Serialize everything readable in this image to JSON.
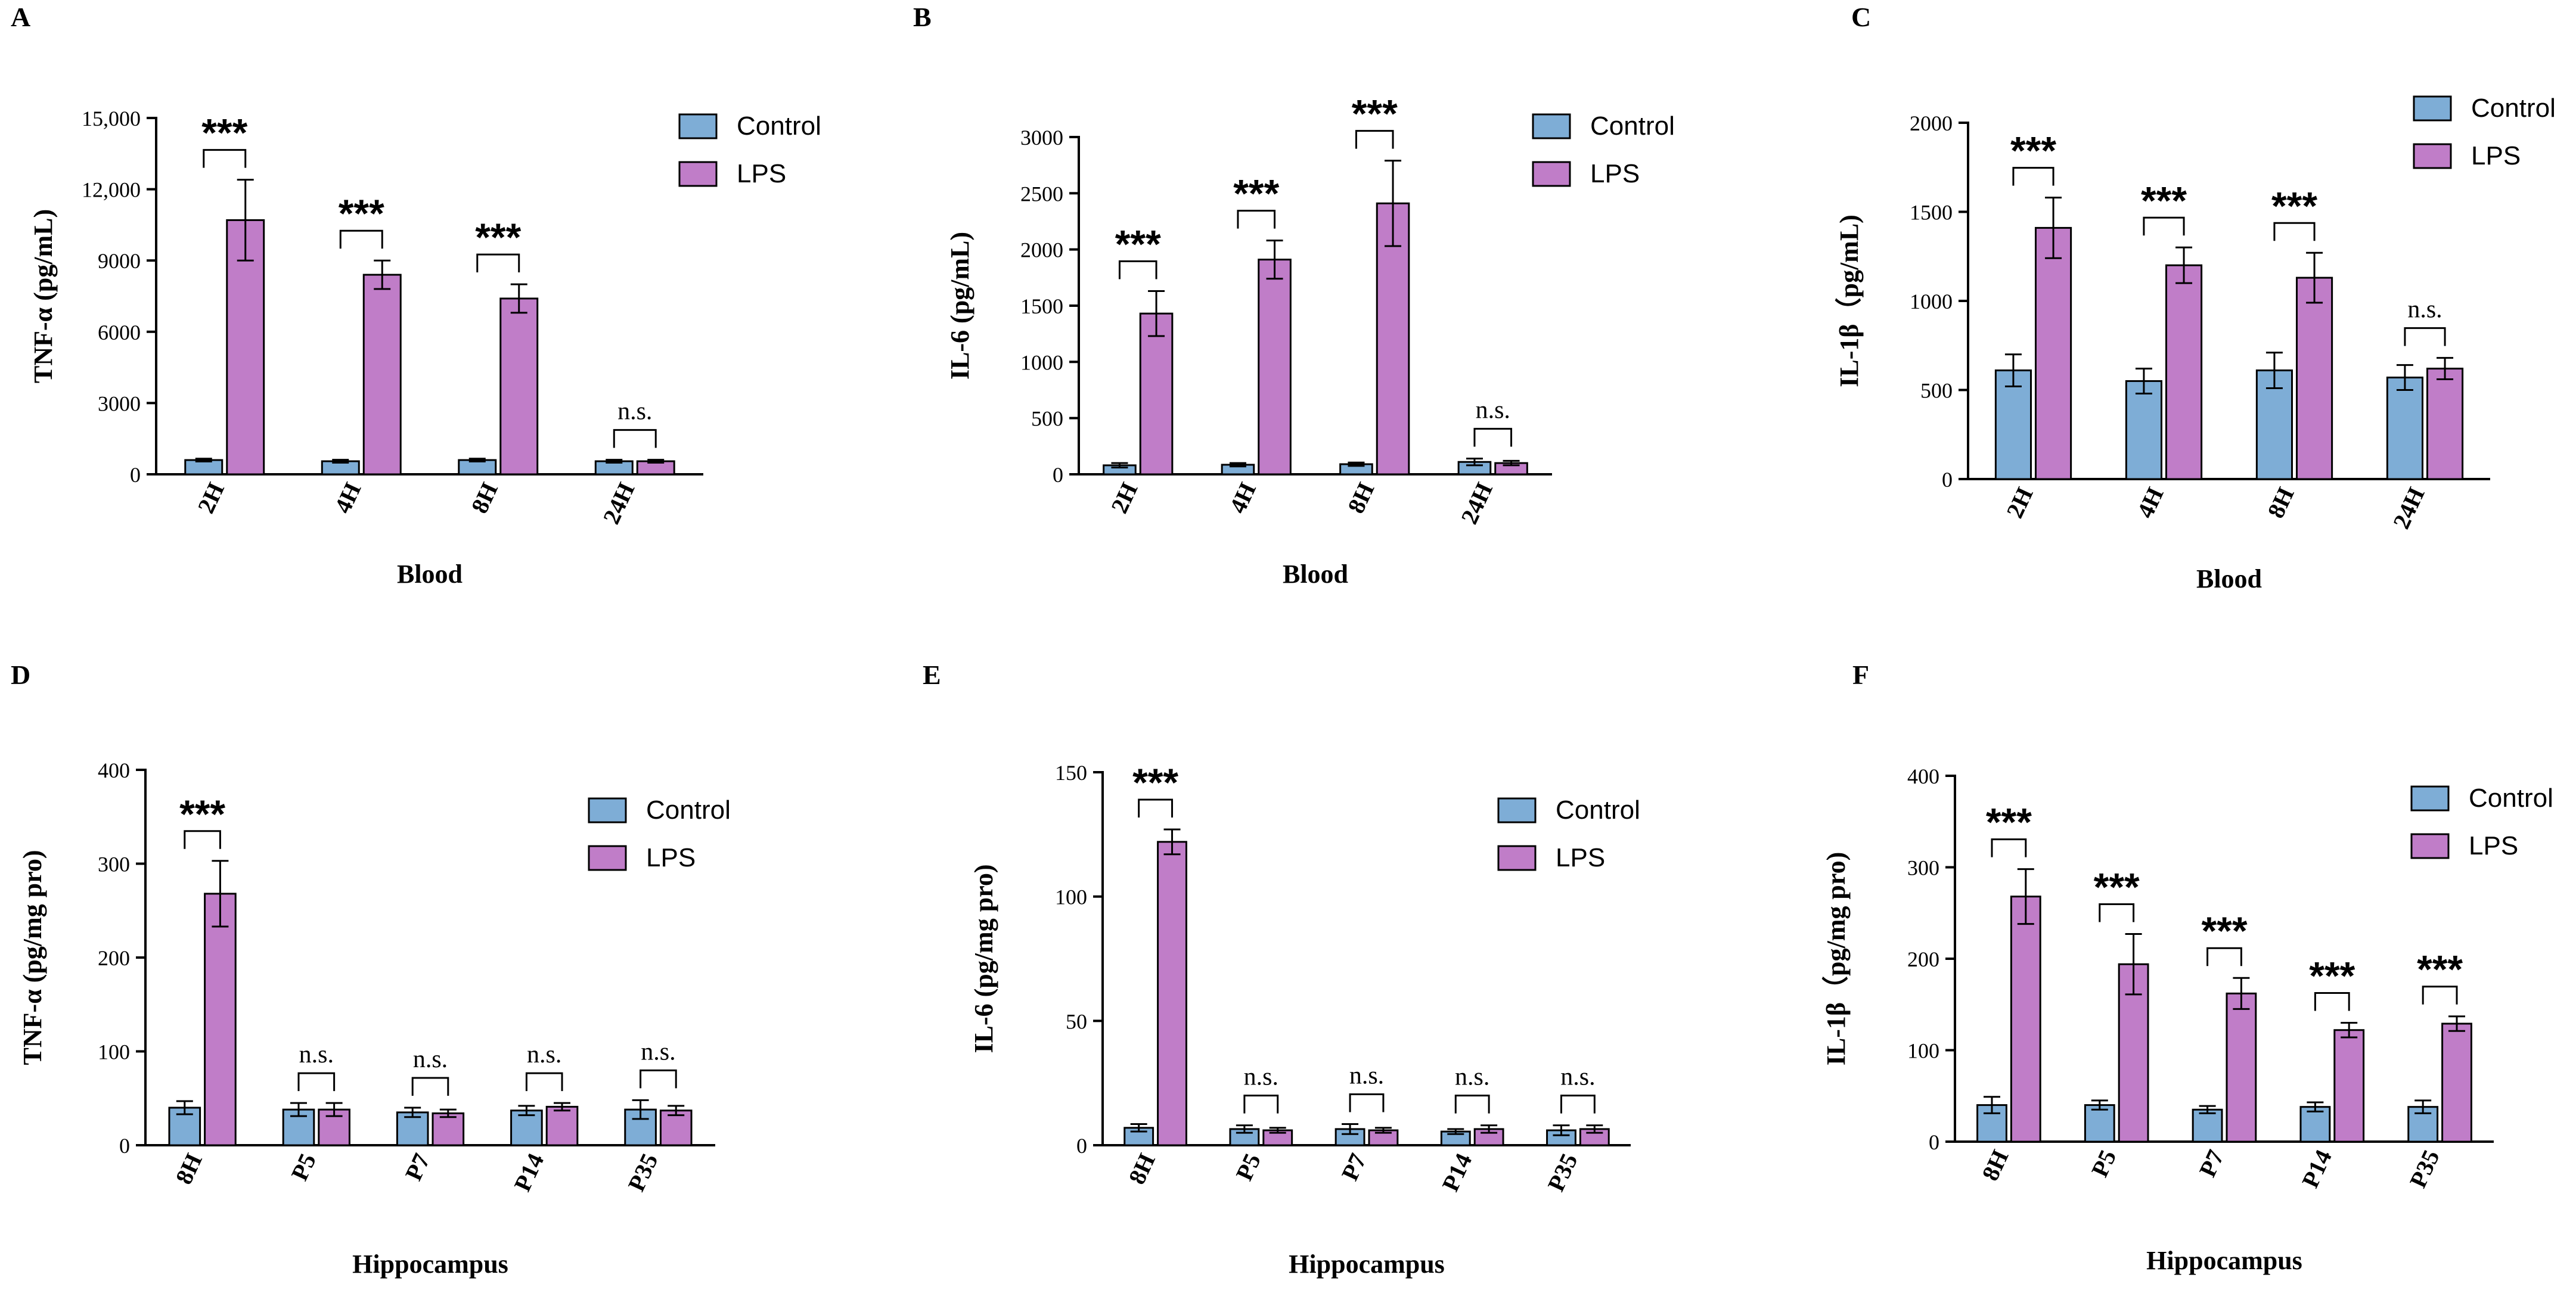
{
  "colors": {
    "control": "#7eadd6",
    "lps": "#c07dc8",
    "axis": "#000000"
  },
  "legend": {
    "control_label": "Control",
    "lps_label": "LPS",
    "position": "top-right"
  },
  "chart_data": [
    {
      "panel": "A",
      "type": "bar",
      "categories": [
        "2H",
        "4H",
        "8H",
        "24H"
      ],
      "series": [
        {
          "name": "Control",
          "values": [
            600,
            550,
            600,
            550
          ],
          "errors": [
            60,
            60,
            60,
            60
          ]
        },
        {
          "name": "LPS",
          "values": [
            10700,
            8400,
            7400,
            550
          ],
          "errors": [
            1700,
            600,
            600,
            60
          ]
        }
      ],
      "significance": [
        "***",
        "***",
        "***",
        "n.s."
      ],
      "ylabel": "TNF-α (pg/mL)",
      "xlabel": "Blood",
      "ylim": [
        0,
        15000
      ],
      "yticks": [
        0,
        3000,
        6000,
        9000,
        12000,
        15000
      ],
      "ytick_labels": [
        "0",
        "3000",
        "6000",
        "9000",
        "12,000",
        "15,000"
      ]
    },
    {
      "panel": "B",
      "type": "bar",
      "categories": [
        "2H",
        "4H",
        "8H",
        "24H"
      ],
      "series": [
        {
          "name": "Control",
          "values": [
            80,
            85,
            90,
            110
          ],
          "errors": [
            20,
            15,
            15,
            30
          ]
        },
        {
          "name": "LPS",
          "values": [
            1430,
            1910,
            2410,
            100
          ],
          "errors": [
            200,
            170,
            380,
            20
          ]
        }
      ],
      "significance": [
        "***",
        "***",
        "***",
        "n.s."
      ],
      "ylabel": "IL-6 (pg/mL)",
      "xlabel": "Blood",
      "ylim": [
        0,
        3000
      ],
      "yticks": [
        0,
        500,
        1000,
        1500,
        2000,
        2500,
        3000
      ],
      "ytick_labels": [
        "0",
        "500",
        "1000",
        "1500",
        "2000",
        "2500",
        "3000"
      ]
    },
    {
      "panel": "C",
      "type": "bar",
      "categories": [
        "2H",
        "4H",
        "8H",
        "24H"
      ],
      "series": [
        {
          "name": "Control",
          "values": [
            610,
            550,
            610,
            570
          ],
          "errors": [
            90,
            70,
            100,
            70
          ]
        },
        {
          "name": "LPS",
          "values": [
            1410,
            1200,
            1130,
            620
          ],
          "errors": [
            170,
            100,
            140,
            60
          ]
        }
      ],
      "significance": [
        "***",
        "***",
        "***",
        "n.s."
      ],
      "ylabel": "IL-1β（pg/mL)",
      "xlabel": "Blood",
      "ylim": [
        0,
        2000
      ],
      "yticks": [
        0,
        500,
        1000,
        1500,
        2000
      ],
      "ytick_labels": [
        "0",
        "500",
        "1000",
        "1500",
        "2000"
      ]
    },
    {
      "panel": "D",
      "type": "bar",
      "categories": [
        "8H",
        "P5",
        "P7",
        "P14",
        "P35"
      ],
      "series": [
        {
          "name": "Control",
          "values": [
            40,
            38,
            35,
            37,
            38
          ],
          "errors": [
            7,
            7,
            5,
            5,
            10
          ]
        },
        {
          "name": "LPS",
          "values": [
            268,
            38,
            34,
            41,
            37
          ],
          "errors": [
            35,
            7,
            4,
            4,
            5
          ]
        }
      ],
      "significance": [
        "***",
        "n.s.",
        "n.s.",
        "n.s.",
        "n.s."
      ],
      "ylabel": "TNF-α (pg/mg pro)",
      "xlabel": "Hippocampus",
      "ylim": [
        0,
        400
      ],
      "yticks": [
        0,
        100,
        200,
        300,
        400
      ],
      "ytick_labels": [
        "0",
        "100",
        "200",
        "300",
        "400"
      ]
    },
    {
      "panel": "E",
      "type": "bar",
      "categories": [
        "8H",
        "P5",
        "P7",
        "P14",
        "P35"
      ],
      "series": [
        {
          "name": "Control",
          "values": [
            7,
            6.5,
            6.5,
            5.5,
            6
          ],
          "errors": [
            1.5,
            1.5,
            2,
            1,
            2
          ]
        },
        {
          "name": "LPS",
          "values": [
            122,
            6,
            6,
            6.5,
            6.5
          ],
          "errors": [
            5,
            1,
            1,
            1.5,
            1.5
          ]
        }
      ],
      "significance": [
        "***",
        "n.s.",
        "n.s.",
        "n.s.",
        "n.s."
      ],
      "ylabel": "IL-6 (pg/mg pro)",
      "xlabel": "Hippocampus",
      "ylim": [
        0,
        150
      ],
      "yticks": [
        0,
        50,
        100,
        150
      ],
      "ytick_labels": [
        "0",
        "50",
        "100",
        "150"
      ]
    },
    {
      "panel": "F",
      "type": "bar",
      "categories": [
        "8H",
        "P5",
        "P7",
        "P14",
        "P35"
      ],
      "series": [
        {
          "name": "Control",
          "values": [
            40,
            40,
            35,
            38,
            38
          ],
          "errors": [
            9,
            5,
            4,
            5,
            7
          ]
        },
        {
          "name": "LPS",
          "values": [
            268,
            194,
            162,
            122,
            129
          ],
          "errors": [
            30,
            33,
            17,
            8,
            8
          ]
        }
      ],
      "significance": [
        "***",
        "***",
        "***",
        "***",
        "***"
      ],
      "ylabel": "IL-1β（pg/mg pro)",
      "xlabel": "Hippocampus",
      "ylim": [
        0,
        400
      ],
      "yticks": [
        0,
        100,
        200,
        300,
        400
      ],
      "ytick_labels": [
        "0",
        "100",
        "200",
        "300",
        "400"
      ]
    }
  ]
}
